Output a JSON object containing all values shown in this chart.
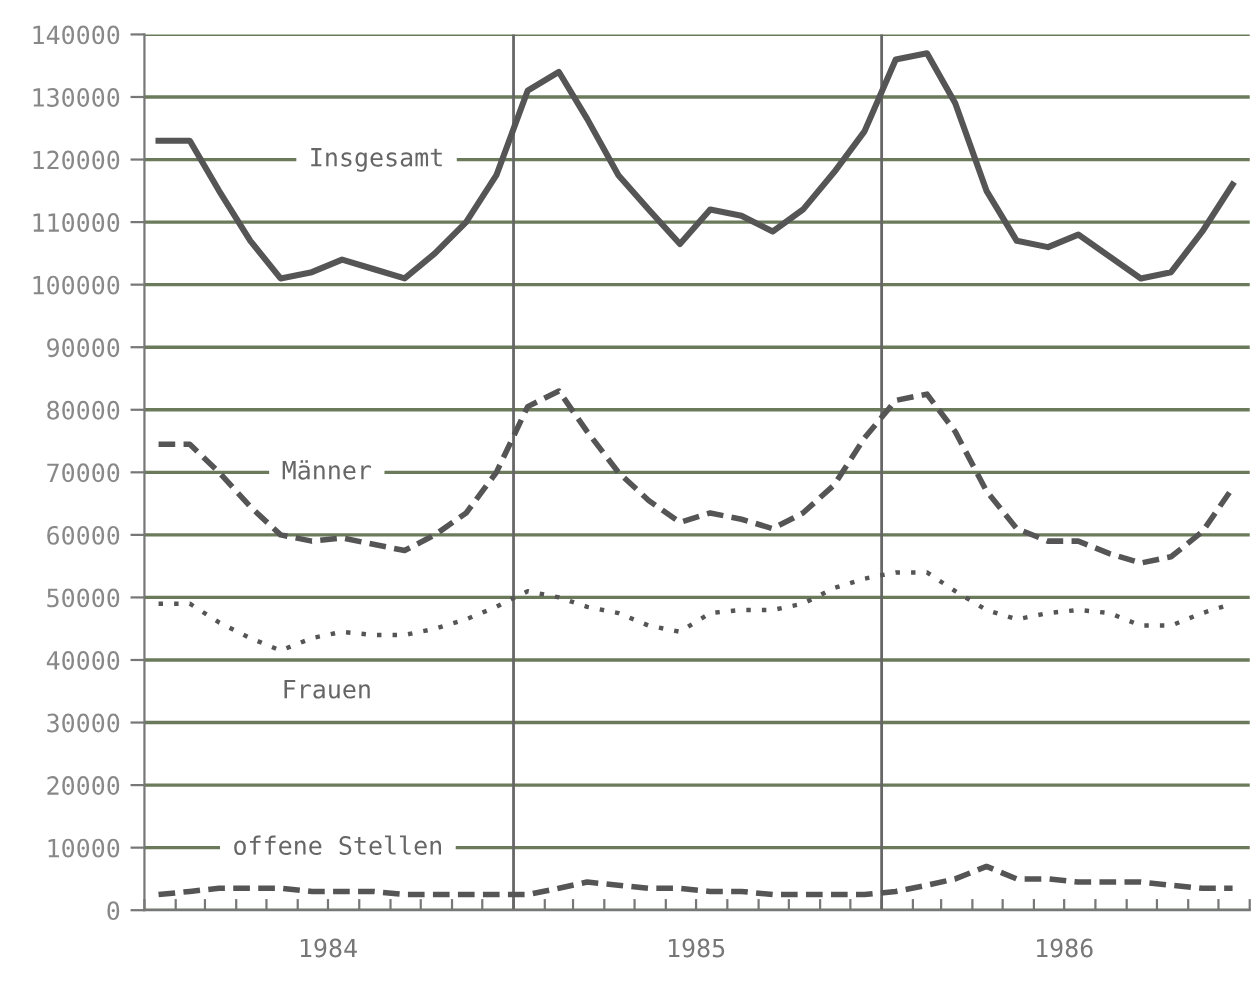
{
  "chart_data": {
    "type": "line",
    "x": [
      "1984-01-15",
      "1984-02-15",
      "1984-03-15",
      "1984-04-15",
      "1984-05-15",
      "1984-06-15",
      "1984-07-15",
      "1984-08-15",
      "1984-09-15",
      "1984-10-15",
      "1984-11-15",
      "1984-12-15",
      "1985-01-15",
      "1985-02-15",
      "1985-03-15",
      "1985-04-15",
      "1985-05-15",
      "1985-06-15",
      "1985-07-15",
      "1985-08-15",
      "1985-09-15",
      "1985-10-15",
      "1985-11-15",
      "1985-12-15",
      "1986-01-15",
      "1986-02-15",
      "1986-03-15",
      "1986-04-15",
      "1986-05-15",
      "1986-06-15",
      "1986-07-15",
      "1986-08-15",
      "1986-09-15",
      "1986-10-15",
      "1986-11-15",
      "1986-12-15"
    ],
    "series": [
      {
        "name": "Insgesamt",
        "color": "#555555",
        "line_style": "solid",
        "values": [
          123000,
          123000,
          115000,
          107000,
          101000,
          102000,
          104000,
          102500,
          101000,
          105000,
          110000,
          117500,
          131000,
          134000,
          126500,
          117500,
          112000,
          106500,
          112000,
          111000,
          108500,
          112000,
          118000,
          124500,
          136000,
          137000,
          129000,
          115000,
          107000,
          106000,
          108000,
          104500,
          101000,
          102000,
          108500,
          116000
        ]
      },
      {
        "name": "Männer",
        "color": "#555555",
        "line_style": "dashed",
        "values": [
          74500,
          74500,
          70000,
          64500,
          60000,
          59000,
          59500,
          58500,
          57500,
          60000,
          63500,
          70000,
          80500,
          83000,
          76500,
          70000,
          65500,
          62000,
          63500,
          62500,
          61000,
          63500,
          68000,
          75500,
          81500,
          82500,
          76500,
          67000,
          61000,
          59000,
          59000,
          57000,
          55500,
          56500,
          60500,
          67500
        ]
      },
      {
        "name": "Frauen",
        "color": "#555555",
        "line_style": "dotted",
        "values": [
          49000,
          49000,
          46000,
          43500,
          41500,
          43500,
          44500,
          44000,
          44000,
          45000,
          46500,
          48500,
          51000,
          50000,
          48500,
          47500,
          45500,
          44500,
          47500,
          48000,
          48000,
          49000,
          51500,
          53000,
          54000,
          54000,
          51000,
          48000,
          46500,
          47500,
          48000,
          47500,
          45500,
          45500,
          47500,
          49000
        ]
      },
      {
        "name": "offene Stellen",
        "color": "#555555",
        "line_style": "dashed",
        "values": [
          2500,
          3000,
          3500,
          3500,
          3500,
          3000,
          3000,
          3000,
          2500,
          2500,
          2500,
          2500,
          2500,
          3500,
          4500,
          4000,
          3500,
          3500,
          3000,
          3000,
          2500,
          2500,
          2500,
          2500,
          3000,
          4000,
          5000,
          7000,
          5000,
          5000,
          4500,
          4500,
          4500,
          4000,
          3500,
          3500
        ]
      }
    ],
    "xlim": [
      "1984-01-01",
      "1987-01-01"
    ],
    "xticks": [
      {
        "value": "1984-01-01",
        "label": null
      },
      {
        "value": "1984-02-01",
        "label": null
      },
      {
        "value": "1984-03-01",
        "label": null
      },
      {
        "value": "1984-04-01",
        "label": null
      },
      {
        "value": "1984-05-01",
        "label": null
      },
      {
        "value": "1984-06-01",
        "label": null
      },
      {
        "value": "1984-07-01",
        "label": "1984"
      },
      {
        "value": "1984-08-01",
        "label": null
      },
      {
        "value": "1984-09-01",
        "label": null
      },
      {
        "value": "1984-10-01",
        "label": null
      },
      {
        "value": "1984-11-01",
        "label": null
      },
      {
        "value": "1984-12-01",
        "label": null
      },
      {
        "value": "1985-01-01",
        "label": null
      },
      {
        "value": "1985-02-01",
        "label": null
      },
      {
        "value": "1985-03-01",
        "label": null
      },
      {
        "value": "1985-04-01",
        "label": null
      },
      {
        "value": "1985-05-01",
        "label": null
      },
      {
        "value": "1985-06-01",
        "label": null
      },
      {
        "value": "1985-07-01",
        "label": "1985"
      },
      {
        "value": "1985-08-01",
        "label": null
      },
      {
        "value": "1985-09-01",
        "label": null
      },
      {
        "value": "1985-10-01",
        "label": null
      },
      {
        "value": "1985-11-01",
        "label": null
      },
      {
        "value": "1985-12-01",
        "label": null
      },
      {
        "value": "1986-01-01",
        "label": null
      },
      {
        "value": "1986-02-01",
        "label": null
      },
      {
        "value": "1986-03-01",
        "label": null
      },
      {
        "value": "1986-04-01",
        "label": null
      },
      {
        "value": "1986-05-01",
        "label": null
      },
      {
        "value": "1986-06-01",
        "label": null
      },
      {
        "value": "1986-07-01",
        "label": "1986"
      },
      {
        "value": "1986-08-01",
        "label": null
      },
      {
        "value": "1986-09-01",
        "label": null
      },
      {
        "value": "1986-10-01",
        "label": null
      },
      {
        "value": "1986-11-01",
        "label": null
      },
      {
        "value": "1986-12-01",
        "label": null
      },
      {
        "value": "1987-01-01",
        "label": null
      }
    ],
    "ylim": [
      0,
      140000
    ],
    "yticks": [
      0,
      10000,
      20000,
      30000,
      40000,
      50000,
      60000,
      70000,
      80000,
      90000,
      100000,
      110000,
      120000,
      130000,
      140000
    ],
    "ref_lines": [
      {
        "axis": "x",
        "value": "1985-01-01",
        "color": "#666666"
      },
      {
        "axis": "x",
        "value": "1986-01-01",
        "color": "#666666"
      }
    ],
    "grid": "y",
    "legend": false
  }
}
